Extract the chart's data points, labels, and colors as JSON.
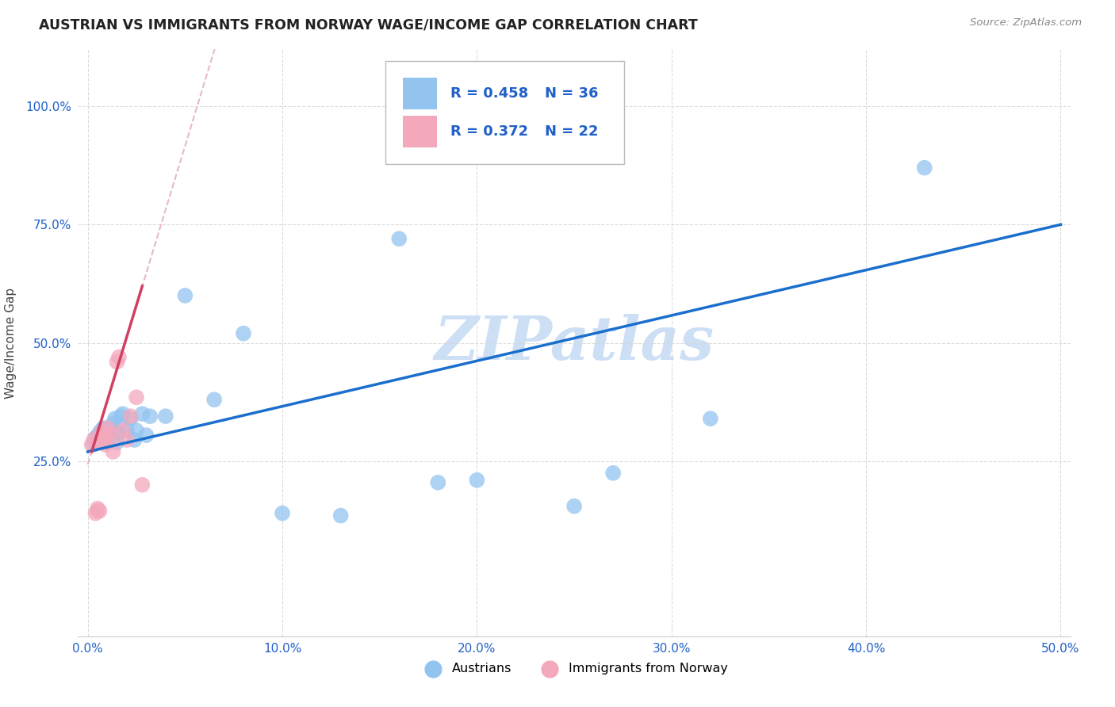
{
  "title": "AUSTRIAN VS IMMIGRANTS FROM NORWAY WAGE/INCOME GAP CORRELATION CHART",
  "source": "Source: ZipAtlas.com",
  "ylabel": "Wage/Income Gap",
  "xlim": [
    -0.005,
    0.505
  ],
  "ylim": [
    -0.12,
    1.12
  ],
  "xtick_labels": [
    "0.0%",
    "10.0%",
    "20.0%",
    "30.0%",
    "40.0%",
    "50.0%"
  ],
  "xtick_vals": [
    0.0,
    0.1,
    0.2,
    0.3,
    0.4,
    0.5
  ],
  "ytick_labels": [
    "25.0%",
    "50.0%",
    "75.0%",
    "100.0%"
  ],
  "ytick_vals": [
    0.25,
    0.5,
    0.75,
    1.0
  ],
  "legend_r_blue": "0.458",
  "legend_n_blue": "36",
  "legend_r_pink": "0.372",
  "legend_n_pink": "22",
  "blue_scatter_color": "#93c4f0",
  "pink_scatter_color": "#f4a8bc",
  "regression_blue_color": "#1a6fcc",
  "regression_pink_color": "#d04060",
  "dashed_color": "#e8b8c8",
  "watermark_text": "ZIPatlas",
  "watermark_color": "#ccdff5",
  "background_color": "#ffffff",
  "grid_color": "#d8d8d8",
  "axis_label_color": "#2060c8",
  "austrians_x": [
    0.003,
    0.004,
    0.005,
    0.006,
    0.007,
    0.008,
    0.009,
    0.01,
    0.011,
    0.012,
    0.013,
    0.014,
    0.015,
    0.016,
    0.017,
    0.018,
    0.02,
    0.022,
    0.024,
    0.025,
    0.028,
    0.03,
    0.032,
    0.04,
    0.05,
    0.065,
    0.08,
    0.1,
    0.13,
    0.16,
    0.18,
    0.2,
    0.25,
    0.27,
    0.32,
    0.43
  ],
  "austrians_y": [
    0.285,
    0.3,
    0.295,
    0.31,
    0.315,
    0.32,
    0.305,
    0.295,
    0.31,
    0.32,
    0.33,
    0.34,
    0.29,
    0.31,
    0.345,
    0.35,
    0.315,
    0.34,
    0.295,
    0.315,
    0.35,
    0.305,
    0.345,
    0.345,
    0.6,
    0.38,
    0.52,
    0.14,
    0.135,
    0.72,
    0.205,
    0.21,
    0.155,
    0.225,
    0.34,
    0.87
  ],
  "norway_x": [
    0.002,
    0.003,
    0.004,
    0.005,
    0.005,
    0.006,
    0.007,
    0.007,
    0.008,
    0.008,
    0.009,
    0.01,
    0.011,
    0.012,
    0.013,
    0.015,
    0.016,
    0.018,
    0.02,
    0.022,
    0.025,
    0.028
  ],
  "norway_y": [
    0.285,
    0.295,
    0.14,
    0.145,
    0.15,
    0.145,
    0.295,
    0.31,
    0.295,
    0.31,
    0.285,
    0.32,
    0.31,
    0.295,
    0.27,
    0.46,
    0.47,
    0.315,
    0.295,
    0.345,
    0.385,
    0.2
  ]
}
